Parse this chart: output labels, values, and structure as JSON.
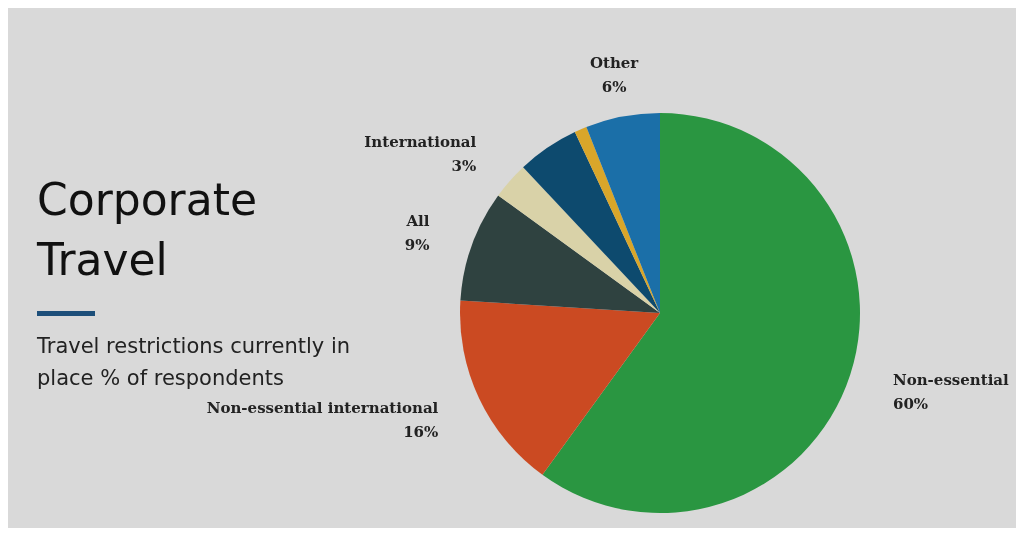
{
  "chart_data": {
    "type": "pie",
    "title": "Corporate Travel",
    "subtitle": "Travel restrictions currently in place % of respondents",
    "categories": [
      "Non-essential",
      "Non-essential international",
      "All",
      "International",
      null,
      null,
      "Other"
    ],
    "values": [
      60,
      16,
      9,
      3,
      5,
      1,
      6
    ],
    "value_labels": [
      "60%",
      "16%",
      "9%",
      "3%",
      null,
      null,
      "6%"
    ],
    "colors": [
      "#2a9641",
      "#cb4a22",
      "#2f4240",
      "#d9d2a8",
      "#0d4a6e",
      "#d9a62a",
      "#1b6fa8"
    ],
    "legend": false
  }
}
